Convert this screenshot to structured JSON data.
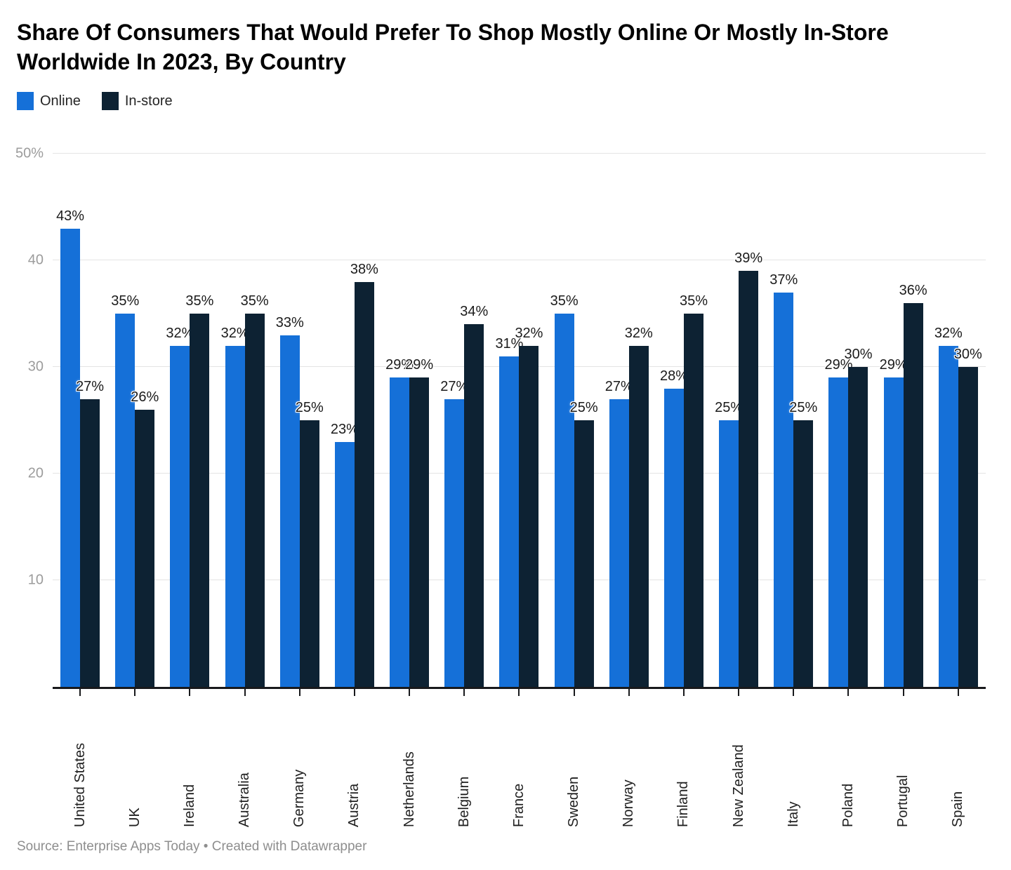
{
  "title": "Share Of Consumers That Would Prefer To Shop Mostly Online Or Mostly In-Store Worldwide In 2023, By Country",
  "footer": "Source: Enterprise Apps Today • Created with Datawrapper",
  "colors": {
    "online": "#1570d8",
    "in_store": "#0d2233",
    "gridline": "#e4e4e4",
    "axis_line": "#18191c",
    "ytick_text": "#9c9c9c",
    "value_label_text": "#1b1b1b",
    "footer_text": "#8e8e8e"
  },
  "legend": {
    "items": [
      {
        "label": "Online",
        "color": "#1570d8"
      },
      {
        "label": "In-store",
        "color": "#0d2233"
      }
    ]
  },
  "chart_data": {
    "type": "bar",
    "title": "Share Of Consumers That Would Prefer To Shop Mostly Online Or Mostly In-Store Worldwide In 2023, By Country",
    "categories": [
      "United States",
      "UK",
      "Ireland",
      "Australia",
      "Germany",
      "Austria",
      "Netherlands",
      "Belgium",
      "France",
      "Sweden",
      "Norway",
      "Finland",
      "New Zealand",
      "Italy",
      "Poland",
      "Portugal",
      "Spain"
    ],
    "series": [
      {
        "name": "Online",
        "color": "#1570d8",
        "values": [
          43,
          35,
          32,
          32,
          33,
          23,
          29,
          27,
          31,
          35,
          27,
          28,
          25,
          37,
          29,
          29,
          32
        ]
      },
      {
        "name": "In-store",
        "color": "#0d2233",
        "values": [
          27,
          26,
          35,
          35,
          25,
          38,
          29,
          34,
          32,
          25,
          32,
          35,
          39,
          25,
          30,
          36,
          30
        ]
      }
    ],
    "value_label_suffix": "%",
    "xlabel": "",
    "ylabel": "",
    "ylim": [
      0,
      50
    ],
    "yticks": [
      {
        "value": 50,
        "label": "50%"
      },
      {
        "value": 40,
        "label": "40"
      },
      {
        "value": 30,
        "label": "30"
      },
      {
        "value": 20,
        "label": "20"
      },
      {
        "value": 10,
        "label": "10"
      }
    ],
    "grid": true,
    "legend_position": "top-left"
  }
}
